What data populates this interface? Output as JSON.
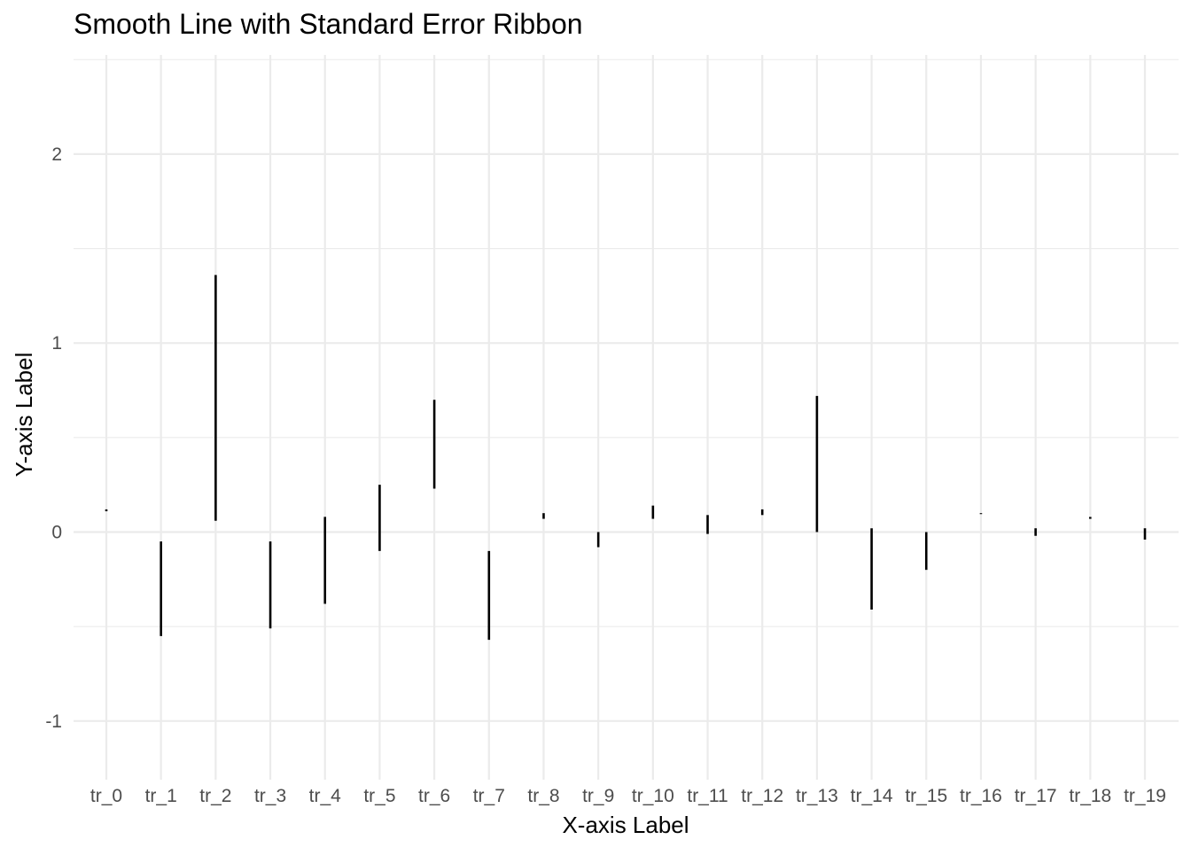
{
  "chart_data": {
    "type": "linerange",
    "title": "Smooth Line with Standard Error Ribbon",
    "xlabel": "X-axis Label",
    "ylabel": "Y-axis Label",
    "categories": [
      "tr_0",
      "tr_1",
      "tr_2",
      "tr_3",
      "tr_4",
      "tr_5",
      "tr_6",
      "tr_7",
      "tr_8",
      "tr_9",
      "tr_10",
      "tr_11",
      "tr_12",
      "tr_13",
      "tr_14",
      "tr_15",
      "tr_16",
      "tr_17",
      "tr_18",
      "tr_19"
    ],
    "ymin": [
      0.11,
      -0.55,
      0.06,
      -0.51,
      -0.38,
      -0.1,
      0.23,
      -0.57,
      0.07,
      -0.08,
      0.07,
      -0.01,
      0.09,
      0.0,
      -0.41,
      -0.2,
      0.095,
      -0.02,
      0.07,
      -0.04
    ],
    "ymax": [
      0.12,
      -0.05,
      1.36,
      -0.05,
      0.08,
      0.25,
      0.7,
      -0.1,
      0.1,
      0.0,
      0.14,
      0.09,
      0.12,
      0.72,
      0.02,
      0.0,
      0.1,
      0.02,
      0.08,
      0.02
    ],
    "ylim": [
      -1.28,
      2.52
    ],
    "y_ticks": [
      -1,
      0,
      1,
      2
    ],
    "y_tick_labels": [
      "-1",
      "0",
      "1",
      "2"
    ],
    "grid": true,
    "legend": "none",
    "colors": {
      "bar": "#000000",
      "grid": "#ebebeb",
      "tick_text": "#4d4d4d",
      "background": "#ffffff"
    }
  }
}
